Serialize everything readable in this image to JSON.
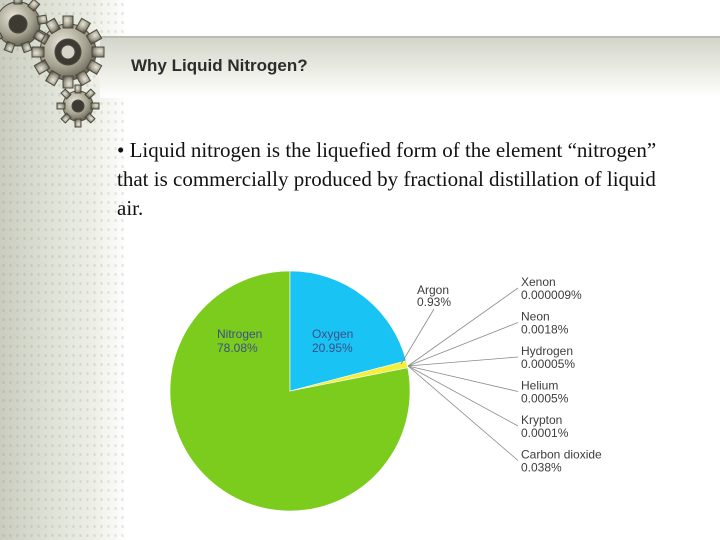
{
  "slide": {
    "title": "Why Liquid Nitrogen?",
    "bullet": "• Liquid nitrogen is the liquefied form of the element “nitrogen” that is commercially produced by fractional distillation of liquid air."
  },
  "colors": {
    "nitrogen": "#7ccc1e",
    "oxygen": "#19c4f4",
    "argon": "#f3ef3a",
    "callout_line": "#8a8a8a"
  },
  "chart_data": {
    "type": "pie",
    "title": "",
    "slices": [
      {
        "name": "Nitrogen",
        "label": "78.08%",
        "value": 78.08
      },
      {
        "name": "Oxygen",
        "label": "20.95%",
        "value": 20.95
      },
      {
        "name": "Argon",
        "label": "0.93%",
        "value": 0.93
      }
    ],
    "callouts": [
      {
        "name": "Xenon",
        "label": "0.000009%",
        "value": 9e-06
      },
      {
        "name": "Neon",
        "label": "0.0018%",
        "value": 0.0018
      },
      {
        "name": "Hydrogen",
        "label": "0.00005%",
        "value": 5e-05
      },
      {
        "name": "Helium",
        "label": "0.0005%",
        "value": 0.0005
      },
      {
        "name": "Krypton",
        "label": "0.0001%",
        "value": 0.0001
      },
      {
        "name": "Carbon dioxide",
        "label": "0.038%",
        "value": 0.038
      }
    ]
  }
}
